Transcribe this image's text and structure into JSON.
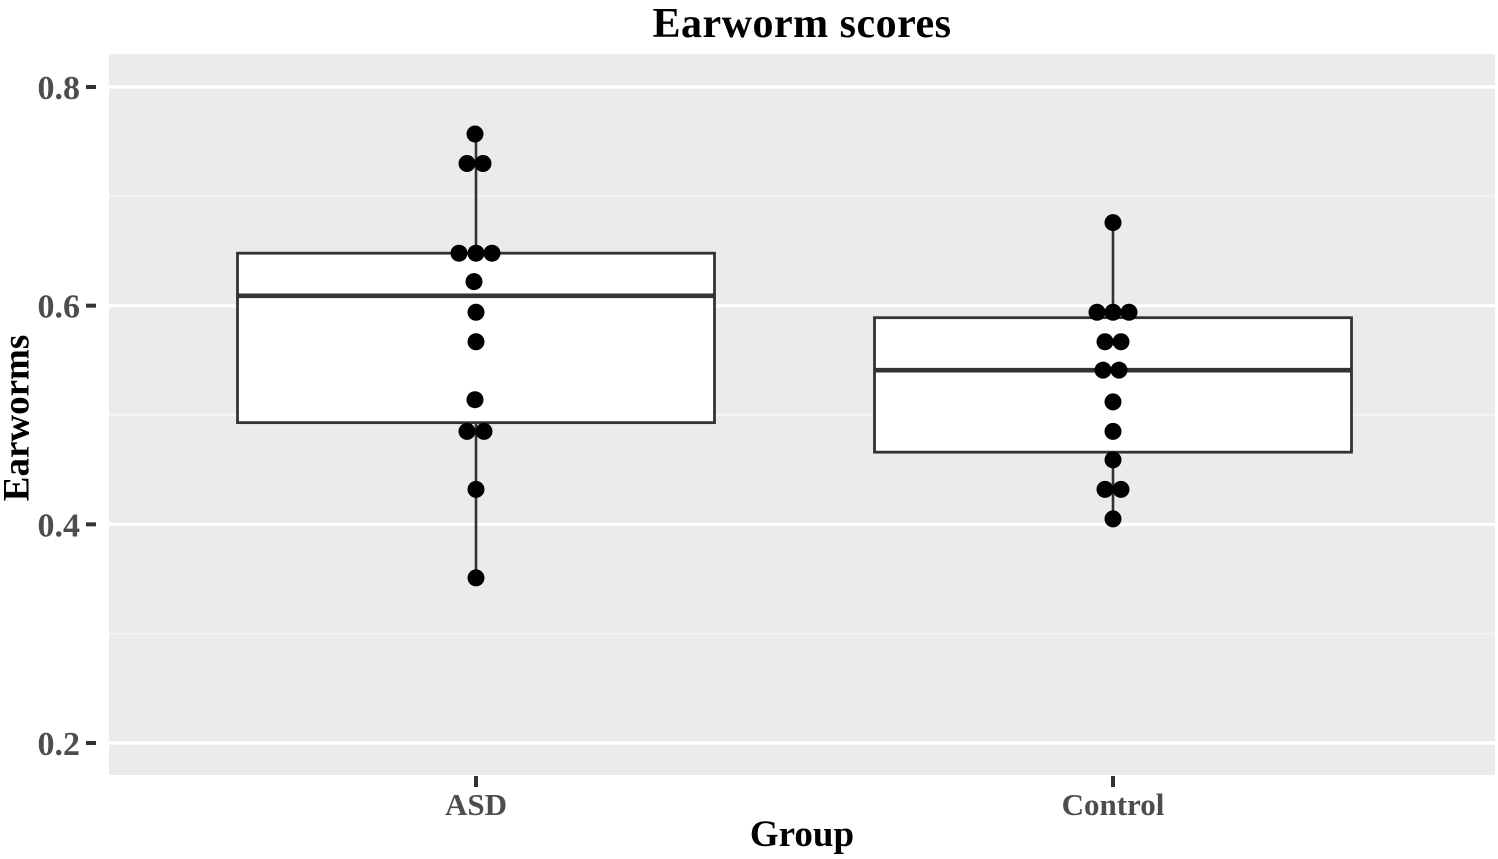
{
  "title": "Earworm scores",
  "x_axis": {
    "label": "Group",
    "tick_labels": [
      "ASD",
      "Control"
    ]
  },
  "y_axis": {
    "label": "Earworms",
    "tick_labels": [
      "0.8",
      "0.6",
      "0.4",
      "0.2"
    ]
  },
  "colors": {
    "panel_bg": "#EBEBEB",
    "grid_major": "#FFFFFF",
    "grid_minor": "#F4F4F4",
    "box_border": "#333333",
    "box_fill": "#FFFFFF",
    "median_line": "#333333",
    "point": "#000000",
    "tick_text": "#4D4D4D",
    "tick_mark": "#333333",
    "title_text": "#000000"
  },
  "chart_data": {
    "type": "boxplot",
    "title": "Earworm scores",
    "xlabel": "Group",
    "ylabel": "Earworms",
    "categories": [
      "ASD",
      "Control"
    ],
    "y_ticks": [
      0.2,
      0.4,
      0.6,
      0.8
    ],
    "y_minor_grid": [
      0.3,
      0.5,
      0.7
    ],
    "ylim": [
      0.17,
      0.83
    ],
    "grid": true,
    "legend": false,
    "series": [
      {
        "name": "ASD",
        "box": {
          "q1": 0.493,
          "median": 0.609,
          "q3": 0.648,
          "whisker_low": 0.351,
          "whisker_high": 0.757
        },
        "points": [
          {
            "v": 0.757,
            "dx": -1
          },
          {
            "v": 0.73,
            "dx": -9
          },
          {
            "v": 0.73,
            "dx": 7
          },
          {
            "v": 0.648,
            "dx": -17
          },
          {
            "v": 0.648,
            "dx": 0
          },
          {
            "v": 0.648,
            "dx": 16
          },
          {
            "v": 0.622,
            "dx": -2
          },
          {
            "v": 0.594,
            "dx": 0
          },
          {
            "v": 0.567,
            "dx": 0
          },
          {
            "v": 0.514,
            "dx": -1
          },
          {
            "v": 0.485,
            "dx": -9
          },
          {
            "v": 0.485,
            "dx": 8
          },
          {
            "v": 0.432,
            "dx": 0
          },
          {
            "v": 0.351,
            "dx": 0
          }
        ]
      },
      {
        "name": "Control",
        "box": {
          "q1": 0.466,
          "median": 0.541,
          "q3": 0.589,
          "whisker_low": 0.405,
          "whisker_high": 0.676
        },
        "points": [
          {
            "v": 0.676,
            "dx": 0
          },
          {
            "v": 0.594,
            "dx": -16
          },
          {
            "v": 0.594,
            "dx": 0
          },
          {
            "v": 0.594,
            "dx": 16
          },
          {
            "v": 0.567,
            "dx": -8
          },
          {
            "v": 0.567,
            "dx": 8
          },
          {
            "v": 0.541,
            "dx": -10
          },
          {
            "v": 0.541,
            "dx": 6
          },
          {
            "v": 0.512,
            "dx": 0
          },
          {
            "v": 0.485,
            "dx": 0
          },
          {
            "v": 0.459,
            "dx": 0
          },
          {
            "v": 0.432,
            "dx": -8
          },
          {
            "v": 0.432,
            "dx": 8
          },
          {
            "v": 0.405,
            "dx": 0
          }
        ]
      }
    ]
  }
}
